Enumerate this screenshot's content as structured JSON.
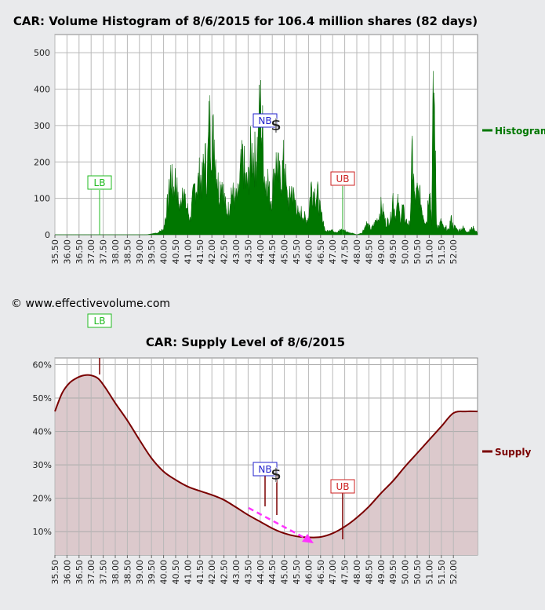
{
  "chart_data": [
    {
      "type": "area",
      "title": "CAR: Volume Histogram of 8/6/2015 for 106.4 million shares (82 days)",
      "xlabel": "",
      "ylabel": "",
      "xlim": [
        35.5,
        53.0
      ],
      "ylim": [
        0,
        550
      ],
      "yticks": [
        0,
        100,
        200,
        300,
        400,
        500
      ],
      "xticks": [
        "35.50",
        "36.00",
        "36.50",
        "37.00",
        "37.50",
        "38.00",
        "38.50",
        "39.00",
        "39.50",
        "40.00",
        "40.50",
        "41.00",
        "41.50",
        "42.00",
        "42.50",
        "43.00",
        "43.50",
        "44.00",
        "44.50",
        "45.00",
        "45.50",
        "46.00",
        "46.50",
        "47.00",
        "47.50",
        "48.00",
        "48.50",
        "49.00",
        "49.50",
        "50.00",
        "50.50",
        "51.00",
        "51.50",
        "52.00"
      ],
      "grid": true,
      "legend_position": "right",
      "series": [
        {
          "name": "Histogram",
          "color": "#007700",
          "x": [
            35.5,
            39.3,
            39.7,
            40.0,
            40.2,
            40.3,
            40.4,
            40.5,
            40.6,
            40.7,
            40.8,
            40.9,
            41.0,
            41.1,
            41.2,
            41.3,
            41.4,
            41.5,
            41.6,
            41.7,
            41.8,
            41.9,
            42.0,
            42.1,
            42.2,
            42.3,
            42.4,
            42.5,
            42.6,
            42.7,
            42.8,
            42.9,
            43.0,
            43.1,
            43.2,
            43.3,
            43.4,
            43.5,
            43.6,
            43.7,
            43.8,
            43.9,
            44.0,
            44.1,
            44.2,
            44.3,
            44.4,
            44.5,
            44.6,
            44.7,
            44.8,
            44.9,
            45.0,
            45.1,
            45.2,
            45.3,
            45.4,
            45.5,
            45.6,
            45.7,
            45.8,
            45.9,
            46.0,
            46.1,
            46.2,
            46.3,
            46.4,
            46.5,
            46.6,
            46.7,
            46.8,
            46.9,
            47.0,
            47.2,
            47.4,
            47.6,
            47.8,
            48.0,
            48.2,
            48.4,
            48.5,
            48.6,
            48.8,
            48.9,
            49.0,
            49.1,
            49.2,
            49.3,
            49.4,
            49.5,
            49.6,
            49.7,
            49.8,
            49.9,
            50.0,
            50.1,
            50.2,
            50.3,
            50.4,
            50.5,
            50.6,
            50.7,
            50.8,
            50.9,
            51.0,
            51.1,
            51.15,
            51.2,
            51.3,
            51.4,
            51.5,
            51.6,
            51.7,
            51.8,
            51.9,
            52.0,
            52.1,
            52.2,
            52.4,
            52.6,
            52.8,
            53.0
          ],
          "values": [
            0,
            0,
            5,
            20,
            130,
            225,
            160,
            210,
            120,
            95,
            200,
            110,
            90,
            55,
            120,
            180,
            175,
            215,
            190,
            285,
            210,
            420,
            340,
            350,
            230,
            155,
            210,
            140,
            80,
            95,
            160,
            140,
            125,
            140,
            235,
            270,
            185,
            190,
            285,
            300,
            270,
            330,
            470,
            360,
            180,
            220,
            130,
            140,
            260,
            250,
            200,
            220,
            275,
            140,
            120,
            170,
            130,
            110,
            60,
            80,
            70,
            50,
            65,
            175,
            160,
            150,
            140,
            75,
            55,
            10,
            15,
            20,
            15,
            10,
            20,
            10,
            5,
            0,
            5,
            40,
            30,
            20,
            50,
            60,
            100,
            80,
            40,
            50,
            60,
            140,
            70,
            110,
            60,
            100,
            50,
            45,
            35,
            300,
            120,
            150,
            140,
            95,
            60,
            45,
            205,
            50,
            420,
            520,
            40,
            30,
            50,
            20,
            25,
            15,
            60,
            30,
            25,
            15,
            25,
            10,
            25,
            8
          ]
        }
      ],
      "annotations": [
        "LB",
        "NB",
        "UB",
        "$"
      ]
    },
    {
      "type": "area",
      "title": "CAR: Supply Level of 8/6/2015",
      "xlabel": "",
      "ylabel": "",
      "xlim": [
        35.5,
        53.0
      ],
      "ylim": [
        3,
        62
      ],
      "yticks": [
        "10%",
        "20%",
        "30%",
        "40%",
        "50%",
        "60%"
      ],
      "xticks": [
        "35.50",
        "36.00",
        "36.50",
        "37.00",
        "37.50",
        "38.00",
        "38.50",
        "39.00",
        "39.50",
        "40.00",
        "40.50",
        "41.00",
        "41.50",
        "42.00",
        "42.50",
        "43.00",
        "43.50",
        "44.00",
        "44.50",
        "45.00",
        "45.50",
        "46.00",
        "46.50",
        "47.00",
        "47.50",
        "48.00",
        "48.50",
        "49.00",
        "49.50",
        "50.00",
        "50.50",
        "51.00",
        "51.50",
        "52.00"
      ],
      "grid": true,
      "legend_position": "right",
      "series": [
        {
          "name": "Supply",
          "color": "#7a0000",
          "x": [
            35.5,
            35.8,
            36.1,
            36.4,
            36.7,
            37.0,
            37.3,
            37.6,
            38.0,
            38.5,
            39.0,
            39.5,
            40.0,
            40.5,
            41.0,
            41.5,
            42.0,
            42.5,
            43.0,
            43.5,
            44.0,
            44.5,
            45.0,
            45.5,
            46.0,
            46.5,
            47.0,
            47.5,
            48.0,
            48.5,
            49.0,
            49.5,
            50.0,
            50.5,
            51.0,
            51.5,
            52.0,
            52.5,
            53.0
          ],
          "values": [
            46,
            51.5,
            54.5,
            56,
            56.8,
            56.8,
            55.8,
            53,
            48.5,
            43.3,
            37.5,
            32,
            28,
            25.5,
            23.5,
            22.2,
            21,
            19.5,
            17.3,
            15,
            13,
            11,
            9.5,
            8.6,
            8.3,
            8.4,
            9.5,
            11.5,
            14.2,
            17.5,
            21.5,
            25.2,
            29.5,
            33.5,
            37.5,
            41.5,
            45.5,
            46,
            46
          ]
        }
      ],
      "annotations": [
        "LB",
        "NB",
        "UB",
        "$"
      ]
    }
  ],
  "copyright": "© www.effectivevolume.com",
  "markers": {
    "lb": "LB",
    "nb": "NB",
    "ub": "UB",
    "dollar": "$"
  },
  "colors": {
    "background": "#e9eaec",
    "histogram": "#007700",
    "supply_line": "#7a0000",
    "supply_fill": "#dcc9cc",
    "lb": "#22bb22",
    "nb": "#2222cc",
    "ub": "#cc2222",
    "trend_arrow": "#ff33ff"
  }
}
